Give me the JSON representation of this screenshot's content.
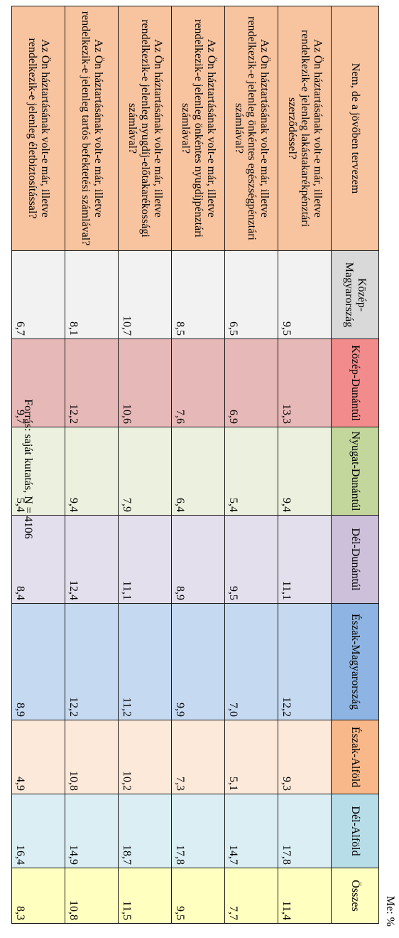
{
  "unit_label": "Me: %",
  "corner_header": "Nem, de a jövőben tervezem",
  "columns": [
    {
      "label": "Közép-Magyarország",
      "header_color": "#d9d9d9",
      "cell_color": "#f2f2f2"
    },
    {
      "label": "Közép-Dunántúl",
      "header_color": "#f28b8b",
      "cell_color": "#e6b8b7"
    },
    {
      "label": "Nyugat-Dunántúl",
      "header_color": "#c3d69b",
      "cell_color": "#ebf1de"
    },
    {
      "label": "Dél-Dunántúl",
      "header_color": "#ccc0da",
      "cell_color": "#e4dfec"
    },
    {
      "label": "Észak-Magyarország",
      "header_color": "#8db4e2",
      "cell_color": "#c5d9f1"
    },
    {
      "label": "Észak-Alföld",
      "header_color": "#f9b889",
      "cell_color": "#fde9d9"
    },
    {
      "label": "Dél-Alföld",
      "header_color": "#b7dee8",
      "cell_color": "#daeef3"
    },
    {
      "label": "Összes",
      "header_color": "#ffffc0",
      "cell_color": "#ffffc0"
    }
  ],
  "question_color": "#f8c4a0",
  "rows": [
    {
      "question": "Az Ön háztartásának volt-e már, illetve rendelkezik-e jelenleg lakástakarékpénztári szerződéssel?",
      "values": [
        "9,5",
        "13,3",
        "9,4",
        "11,1",
        "12,2",
        "9,3",
        "17,8",
        "11,4"
      ]
    },
    {
      "question": "Az Ön háztartásának volt-e már, illetve rendelkezik-e jelenleg önkéntes egészségpénztári számlával?",
      "values": [
        "6,5",
        "6,9",
        "5,4",
        "9,5",
        "7,0",
        "5,1",
        "14,7",
        "7,7"
      ]
    },
    {
      "question": "Az Ön háztartásának volt-e már, illetve rendelkezik-e jelenleg önkéntes nyugdíjpénztári számlával?",
      "values": [
        "8,5",
        "7,6",
        "6,4",
        "8,9",
        "9,9",
        "7,3",
        "17,8",
        "9,5"
      ]
    },
    {
      "question": "Az Ön háztartásának volt-e már, illetve rendelkezik-e jelenleg nyugdíj-előtakarékossági számlával?",
      "values": [
        "10,7",
        "10,6",
        "7,9",
        "11,1",
        "11,2",
        "10,2",
        "18,7",
        "11,5"
      ]
    },
    {
      "question": "Az Ön háztartásának volt-e már, illetve rendelkezik-e jelenleg tartós befektetési számlával?",
      "values": [
        "8,1",
        "12,2",
        "9,4",
        "12,4",
        "12,2",
        "10,8",
        "14,9",
        "10,8"
      ]
    },
    {
      "question": "Az Ön háztartásának volt-e már, illetve rendelkezik-e jelenleg életbiztosítással?",
      "values": [
        "6,7",
        "9,7",
        "5,4",
        "8,4",
        "8,9",
        "4,9",
        "16,4",
        "8,3"
      ]
    }
  ],
  "source": "Forrás: saját kutatás, N = 4106"
}
